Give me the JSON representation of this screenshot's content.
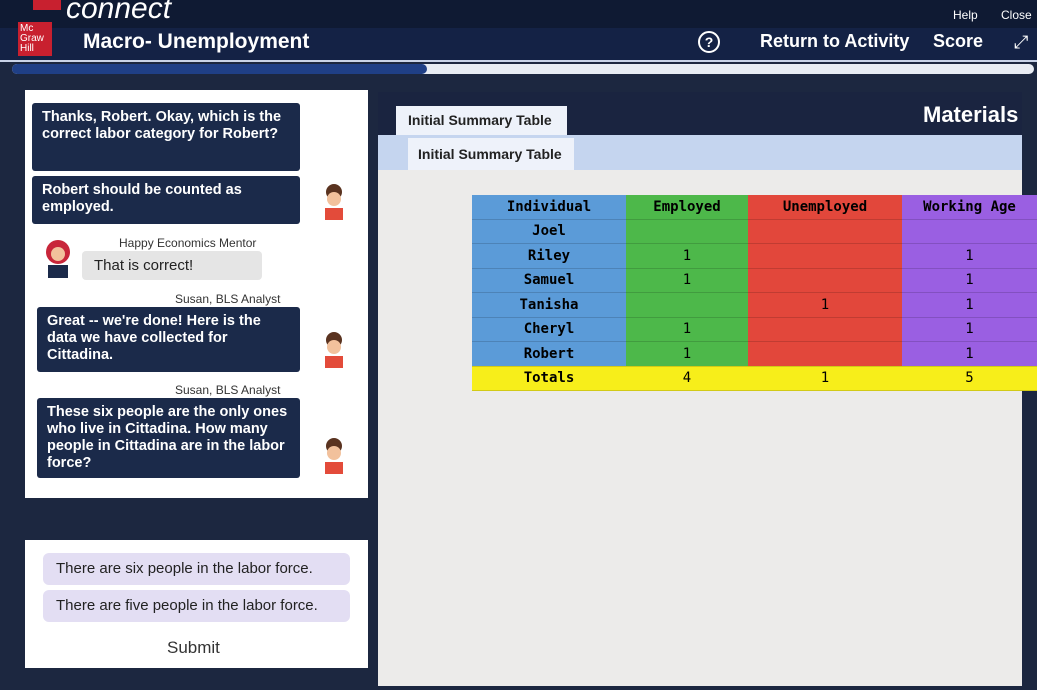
{
  "header": {
    "brand": "connect",
    "logo": "Mc Graw Hill",
    "help": "Help",
    "close": "Close",
    "title": "Macro- Unemployment",
    "help_icon": "?",
    "return": "Return to Activity",
    "score": "Score"
  },
  "chat": [
    {
      "text": "Thanks, Robert. Okay, which is the correct labor category for Robert?"
    },
    {
      "text": "Robert should be counted as employed."
    },
    {
      "speaker": "Happy Economics Mentor",
      "text": "That is correct!"
    },
    {
      "speaker": "Susan, BLS Analyst",
      "text": "Great -- we're done! Here is the data we have collected for Cittadina."
    },
    {
      "speaker": "Susan, BLS Analyst",
      "text": "These six people are the only ones who live in Cittadina. How many people in Cittadina are in the labor force?"
    }
  ],
  "options": [
    "There are six people in the labor force.",
    "There are five people in the labor force."
  ],
  "submit": "Submit",
  "materials": {
    "title": "Materials",
    "tab": "Initial Summary Table",
    "heading": "Initial Summary Table",
    "table": {
      "columns": [
        "Individual",
        "Employed",
        "Unemployed",
        "Working Age"
      ],
      "rows": [
        [
          "Joel",
          null,
          null,
          null
        ],
        [
          "Riley",
          1,
          null,
          1
        ],
        [
          "Samuel",
          1,
          null,
          1
        ],
        [
          "Tanisha",
          null,
          1,
          1
        ],
        [
          "Cheryl",
          1,
          null,
          1
        ],
        [
          "Robert",
          1,
          null,
          1
        ],
        [
          "Totals",
          4,
          1,
          5
        ]
      ]
    }
  }
}
